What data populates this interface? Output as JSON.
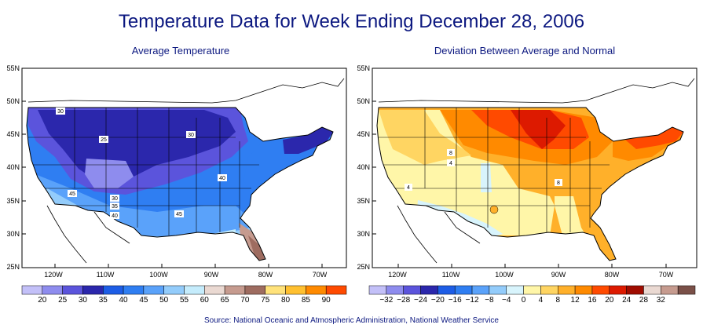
{
  "title": "Temperature Data for Week Ending December 28, 2006",
  "source": "Source:  National Oceanic and Atmospheric Administration, National Weather Service",
  "maps": [
    {
      "subtitle": "Average Temperature",
      "lat_labels": [
        "55N",
        "50N",
        "45N",
        "40N",
        "35N",
        "30N",
        "25N"
      ],
      "lon_labels": [
        "120W",
        "110W",
        "100W",
        "90W",
        "80W",
        "70W"
      ],
      "contour_labels": [
        "30",
        "25",
        "30",
        "40",
        "45",
        "30",
        "35",
        "40",
        "45"
      ],
      "legend": {
        "labels": [
          "20",
          "25",
          "30",
          "35",
          "40",
          "45",
          "50",
          "55",
          "60",
          "65",
          "70",
          "75",
          "80",
          "85",
          "90"
        ],
        "colors": [
          "#c3c0f8",
          "#8e8cee",
          "#5b54dc",
          "#2b27ac",
          "#1d5de6",
          "#2f7ef2",
          "#5aa2fa",
          "#93ccfb",
          "#c5ecfc",
          "#ead9d2",
          "#c69b8f",
          "#9e6c60",
          "#ffe27a",
          "#ffc030",
          "#ff8a00",
          "#ff4a00"
        ]
      }
    },
    {
      "subtitle": "Deviation Between Average and Normal",
      "lat_labels": [
        "55N",
        "50N",
        "45N",
        "40N",
        "35N",
        "30N",
        "25N"
      ],
      "lon_labels": [
        "120W",
        "110W",
        "100W",
        "90W",
        "80W",
        "70W"
      ],
      "contour_labels": [
        "8",
        "4",
        "4",
        "8"
      ],
      "legend": {
        "labels": [
          "−32",
          "−28",
          "−24",
          "−20",
          "−16",
          "−12",
          "−8",
          "−4",
          "0",
          "4",
          "8",
          "12",
          "16",
          "20",
          "24",
          "28",
          "32"
        ],
        "colors": [
          "#c3c0f8",
          "#8e8cee",
          "#5b54dc",
          "#2b27ac",
          "#1d5de6",
          "#2f7ef2",
          "#5aa2fa",
          "#93ccfb",
          "#d8f4fc",
          "#fff6a8",
          "#ffd562",
          "#ffb02a",
          "#ff8a00",
          "#ff4a00",
          "#dd1a00",
          "#a00c00",
          "#ead9d2",
          "#c69b8f",
          "#7a5048"
        ]
      }
    }
  ]
}
